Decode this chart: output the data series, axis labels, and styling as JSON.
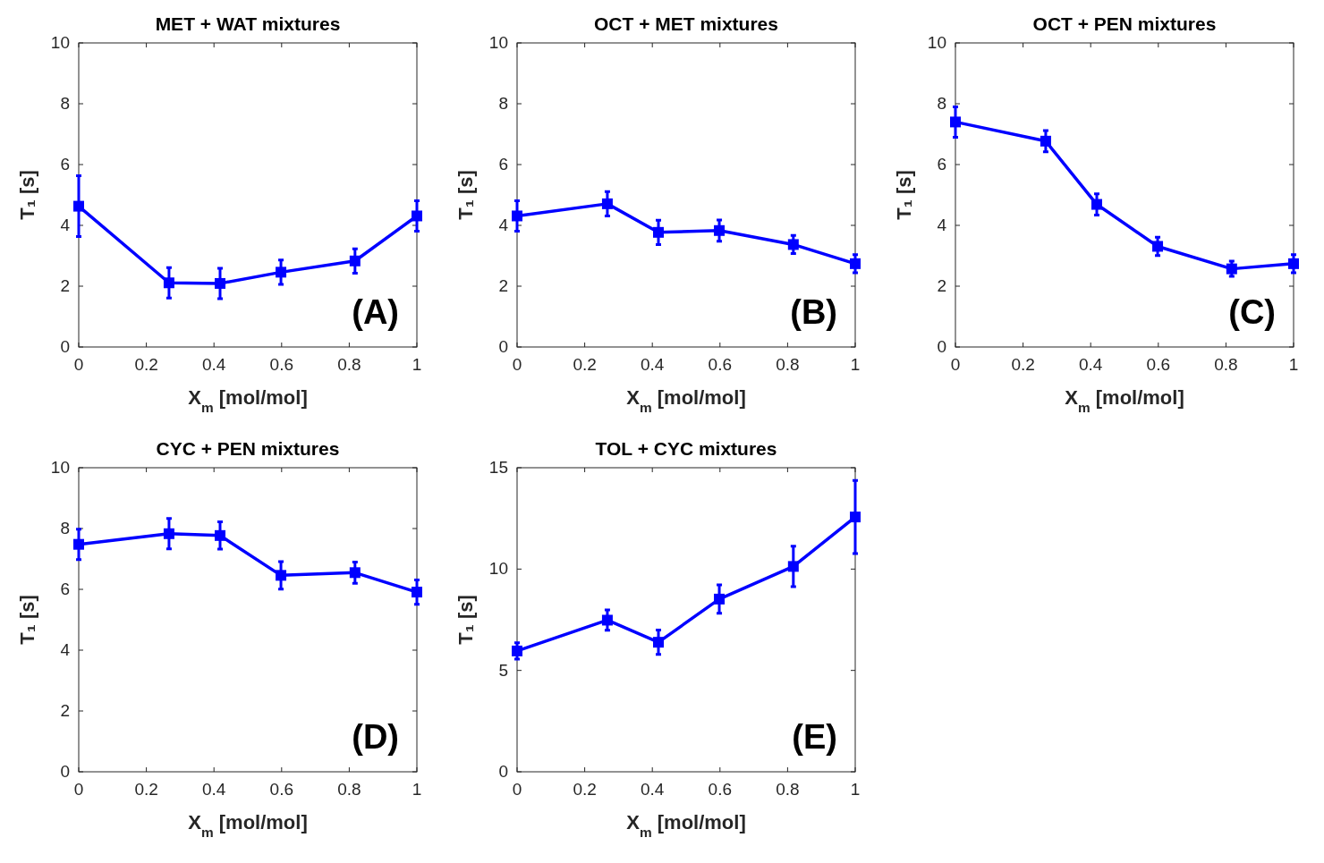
{
  "chart_data": [
    {
      "type": "line",
      "title": "MET + WAT mixtures",
      "xlabel": "X$_{m}$ [mol/mol]",
      "ylabel": "T₁ [s]",
      "x": [
        0,
        0.267,
        0.418,
        0.598,
        0.817,
        1
      ],
      "series": [
        {
          "color": "#0000ff",
          "values": [
            4.63,
            2.11,
            2.09,
            2.46,
            2.83,
            4.31
          ],
          "errors": [
            1.0,
            0.5,
            0.5,
            0.4,
            0.4,
            0.5
          ]
        }
      ],
      "xlim": [
        0,
        1
      ],
      "xticks": [
        0,
        0.2,
        0.4,
        0.6,
        0.8,
        1
      ],
      "ylim": [
        0,
        10
      ],
      "yticks": [
        0,
        2,
        4,
        6,
        8,
        10
      ],
      "marker": "square",
      "annotations": [
        "(A)"
      ]
    },
    {
      "type": "line",
      "title": "OCT + MET mixtures",
      "xlabel": "X$_{m}$ [mol/mol]",
      "ylabel": "T₁ [s]",
      "x": [
        0,
        0.267,
        0.418,
        0.598,
        0.817,
        1
      ],
      "series": [
        {
          "color": "#0000ff",
          "values": [
            4.31,
            4.71,
            3.77,
            3.83,
            3.37,
            2.74
          ],
          "errors": [
            0.5,
            0.4,
            0.4,
            0.35,
            0.3,
            0.3
          ]
        }
      ],
      "xlim": [
        0,
        1
      ],
      "xticks": [
        0,
        0.2,
        0.4,
        0.6,
        0.8,
        1
      ],
      "ylim": [
        0,
        10
      ],
      "yticks": [
        0,
        2,
        4,
        6,
        8,
        10
      ],
      "marker": "square",
      "annotations": [
        "(B)"
      ]
    },
    {
      "type": "line",
      "title": "OCT + PEN mixtures",
      "xlabel": "X$_{m}$ [mol/mol]",
      "ylabel": "T₁ [s]",
      "x": [
        0,
        0.267,
        0.418,
        0.598,
        0.817,
        1
      ],
      "series": [
        {
          "color": "#0000ff",
          "values": [
            7.4,
            6.77,
            4.69,
            3.31,
            2.57,
            2.74
          ],
          "errors": [
            0.5,
            0.35,
            0.35,
            0.3,
            0.25,
            0.3
          ]
        }
      ],
      "xlim": [
        0,
        1
      ],
      "xticks": [
        0,
        0.2,
        0.4,
        0.6,
        0.8,
        1
      ],
      "ylim": [
        0,
        10
      ],
      "yticks": [
        0,
        2,
        4,
        6,
        8,
        10
      ],
      "marker": "square",
      "annotations": [
        "(C)"
      ]
    },
    {
      "type": "line",
      "title": "CYC + PEN mixtures",
      "xlabel": "X$_{m}$ [mol/mol]",
      "ylabel": "T₁ [s]",
      "x": [
        0,
        0.267,
        0.418,
        0.598,
        0.817,
        1
      ],
      "series": [
        {
          "color": "#0000ff",
          "values": [
            7.48,
            7.83,
            7.77,
            6.46,
            6.55,
            5.91
          ],
          "errors": [
            0.5,
            0.5,
            0.45,
            0.45,
            0.35,
            0.4
          ]
        }
      ],
      "xlim": [
        0,
        1
      ],
      "xticks": [
        0,
        0.2,
        0.4,
        0.6,
        0.8,
        1
      ],
      "ylim": [
        0,
        10
      ],
      "yticks": [
        0,
        2,
        4,
        6,
        8,
        10
      ],
      "marker": "square",
      "annotations": [
        "(D)"
      ]
    },
    {
      "type": "line",
      "title": "TOL + CYC mixtures",
      "xlabel": "X$_{m}$ [mol/mol]",
      "ylabel": "T₁ [s]",
      "x": [
        0,
        0.267,
        0.418,
        0.598,
        0.817,
        1
      ],
      "series": [
        {
          "color": "#0000ff",
          "values": [
            5.96,
            7.48,
            6.39,
            8.52,
            10.13,
            12.57
          ],
          "errors": [
            0.4,
            0.5,
            0.6,
            0.7,
            1.0,
            1.8
          ]
        }
      ],
      "xlim": [
        0,
        1
      ],
      "xticks": [
        0,
        0.2,
        0.4,
        0.6,
        0.8,
        1
      ],
      "ylim": [
        0,
        15
      ],
      "yticks": [
        0,
        5,
        10,
        15
      ],
      "marker": "square",
      "annotations": [
        "(E)"
      ]
    }
  ]
}
